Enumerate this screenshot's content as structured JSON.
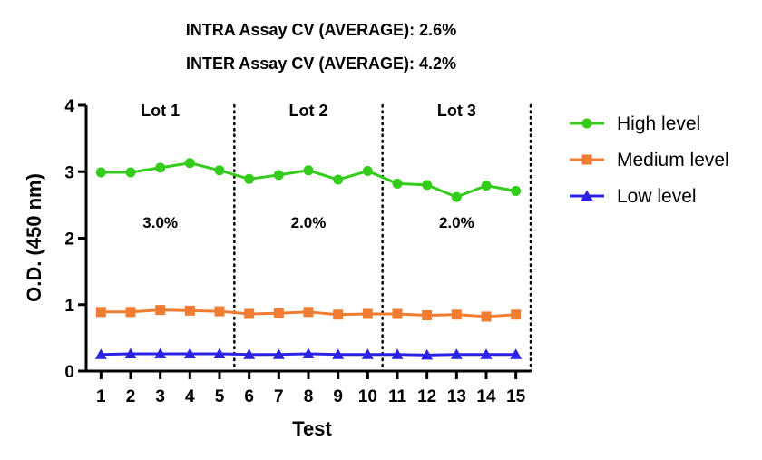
{
  "chart_data": {
    "type": "line",
    "header_lines": [
      "INTRA Assay CV (AVERAGE): 2.6%",
      "INTER Assay CV (AVERAGE): 4.2%"
    ],
    "xlabel": "Test",
    "ylabel": "O.D. (450 nm)",
    "x": [
      1,
      2,
      3,
      4,
      5,
      6,
      7,
      8,
      9,
      10,
      11,
      12,
      13,
      14,
      15
    ],
    "xlim": [
      0.5,
      15.5
    ],
    "ylim": [
      0,
      4
    ],
    "yticks": [
      0,
      1,
      2,
      3,
      4
    ],
    "grid": false,
    "legend_position": "right",
    "series": [
      {
        "name": "High level",
        "color": "#33cc1a",
        "marker": "circle",
        "values": [
          2.99,
          2.99,
          3.06,
          3.13,
          3.02,
          2.89,
          2.95,
          3.02,
          2.88,
          3.01,
          2.82,
          2.8,
          2.62,
          2.79,
          2.71
        ]
      },
      {
        "name": "Medium level",
        "color": "#f07d32",
        "marker": "square",
        "values": [
          0.89,
          0.89,
          0.92,
          0.91,
          0.9,
          0.86,
          0.87,
          0.89,
          0.85,
          0.86,
          0.86,
          0.84,
          0.85,
          0.82,
          0.85
        ]
      },
      {
        "name": "Low level",
        "color": "#2b22e6",
        "marker": "triangle",
        "values": [
          0.25,
          0.26,
          0.26,
          0.26,
          0.26,
          0.25,
          0.25,
          0.26,
          0.25,
          0.25,
          0.25,
          0.24,
          0.25,
          0.25,
          0.25
        ]
      }
    ],
    "lot_dividers_after_test": [
      5.5,
      10.5,
      15.5
    ],
    "lots": [
      {
        "label": "Lot 1",
        "cv": "3.0%",
        "center": 3
      },
      {
        "label": "Lot 2",
        "cv": "2.0%",
        "center": 8
      },
      {
        "label": "Lot 3",
        "cv": "2.0%",
        "center": 13
      }
    ]
  }
}
